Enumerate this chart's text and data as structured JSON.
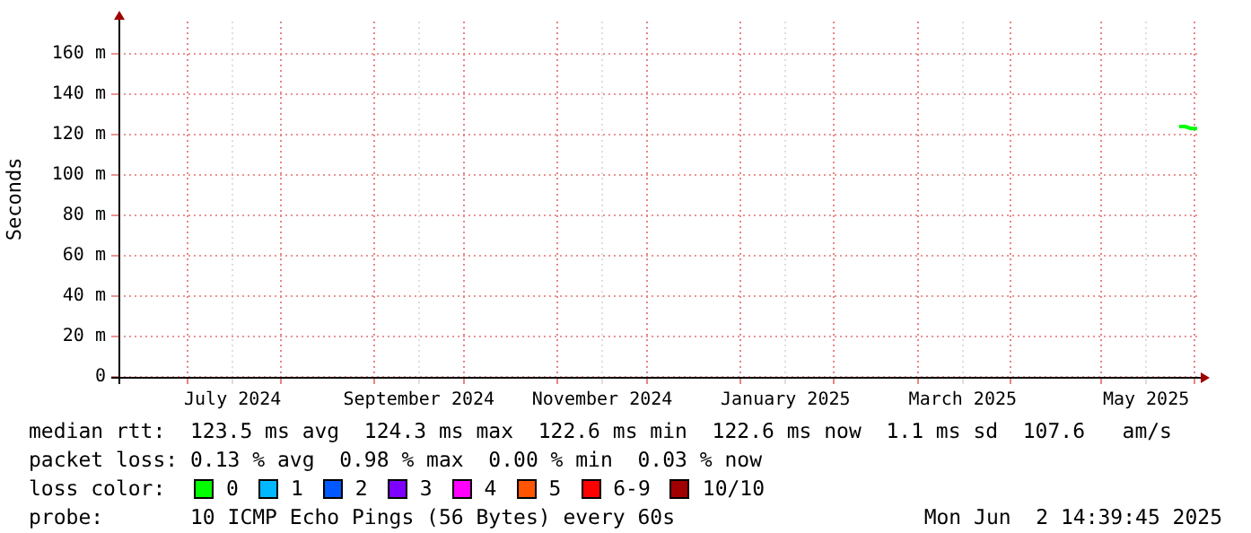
{
  "chart_data": {
    "type": "line",
    "ylabel": "Seconds",
    "xlim": [
      "2024-06-08",
      "2025-06-02T14:39"
    ],
    "ylim": [
      0,
      176
    ],
    "xticks": [
      {
        "value": "2024-07-01",
        "label": null
      },
      {
        "value": "2024-07-16",
        "label": "July 2024"
      },
      {
        "value": "2024-08-01",
        "label": null
      },
      {
        "value": "2024-09-01",
        "label": null
      },
      {
        "value": "2024-09-16",
        "label": "September 2024"
      },
      {
        "value": "2024-10-01",
        "label": null
      },
      {
        "value": "2024-11-01",
        "label": null
      },
      {
        "value": "2024-11-16",
        "label": "November 2024"
      },
      {
        "value": "2024-12-01",
        "label": null
      },
      {
        "value": "2025-01-01",
        "label": null
      },
      {
        "value": "2025-01-16",
        "label": "January 2025"
      },
      {
        "value": "2025-02-01",
        "label": null
      },
      {
        "value": "2025-03-01",
        "label": null
      },
      {
        "value": "2025-03-16",
        "label": "March 2025"
      },
      {
        "value": "2025-04-01",
        "label": null
      },
      {
        "value": "2025-05-01",
        "label": null
      },
      {
        "value": "2025-05-16",
        "label": "May 2025"
      },
      {
        "value": "2025-06-01",
        "label": null
      }
    ],
    "yticks": [
      {
        "value": 0,
        "label": "0"
      },
      {
        "value": 20,
        "label": "20 m"
      },
      {
        "value": 40,
        "label": "40 m"
      },
      {
        "value": 60,
        "label": "60 m"
      },
      {
        "value": 80,
        "label": "80 m"
      },
      {
        "value": 100,
        "label": "100 m"
      },
      {
        "value": 120,
        "label": "120 m"
      },
      {
        "value": 140,
        "label": "140 m"
      },
      {
        "value": 160,
        "label": "160 m"
      }
    ],
    "grid": true,
    "legend": "bottom",
    "legend_title": "loss color:",
    "x": [
      "2025-05-27",
      "2025-05-29",
      "2025-05-31",
      "2025-06-02"
    ],
    "series": [
      {
        "name": "0",
        "color": "#00ff00",
        "values": [
          124,
          124,
          123,
          123
        ]
      },
      {
        "name": "1",
        "color": "#00b8ff",
        "values": [
          null,
          null,
          null,
          null
        ]
      },
      {
        "name": "2",
        "color": "#0059ff",
        "values": [
          null,
          null,
          null,
          null
        ]
      },
      {
        "name": "3",
        "color": "#7e00ff",
        "values": [
          null,
          null,
          null,
          null
        ]
      },
      {
        "name": "4",
        "color": "#ff00ff",
        "values": [
          null,
          null,
          null,
          null
        ]
      },
      {
        "name": "5",
        "color": "#ff5500",
        "values": [
          null,
          null,
          null,
          null
        ]
      },
      {
        "name": "6-9",
        "color": "#ff0000",
        "values": [
          null,
          null,
          null,
          null
        ]
      },
      {
        "name": "10/10",
        "color": "#a10000",
        "values": [
          null,
          null,
          null,
          null
        ]
      }
    ],
    "annotations": [
      "median rtt:  123.5 ms avg  124.3 ms max  122.6 ms min  122.6 ms now  1.1 ms sd  107.6   am/s",
      "packet loss: 0.13 % avg  0.98 % max  0.00 % min  0.03 % now",
      "probe:       10 ICMP Echo Pings (56 Bytes) every 60s",
      "Mon Jun  2 14:39:45 2025"
    ]
  }
}
